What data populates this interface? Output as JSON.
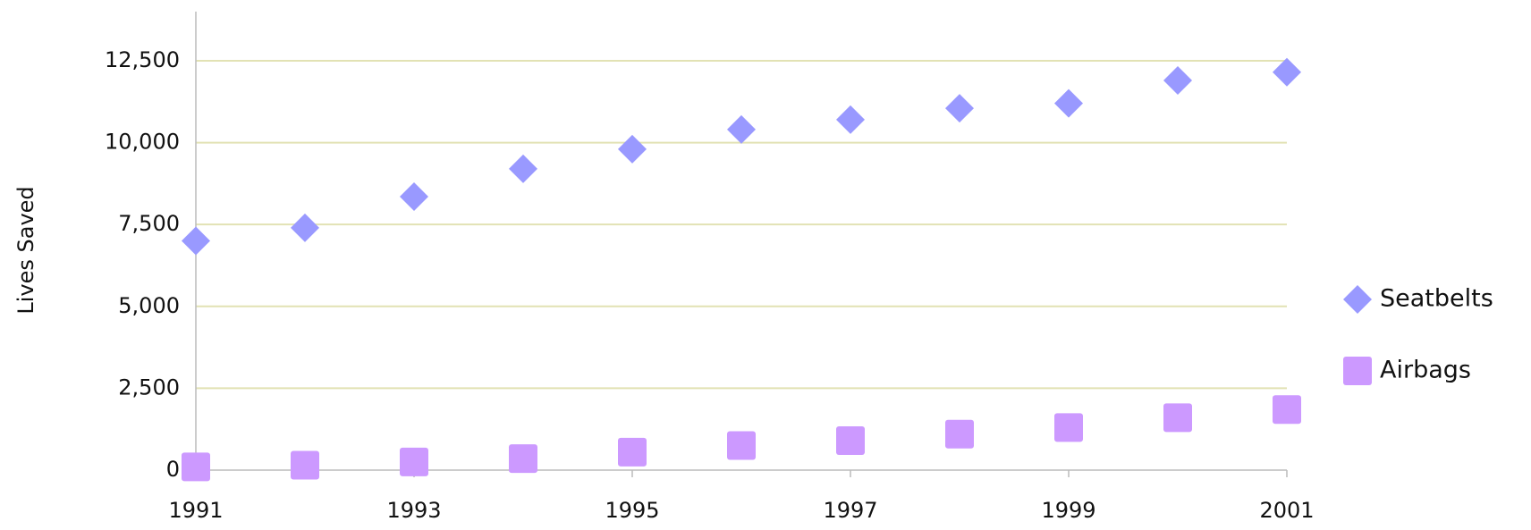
{
  "chart_data": {
    "type": "scatter",
    "y_label": "Lives Saved",
    "x": [
      1991,
      1992,
      1993,
      1994,
      1995,
      1996,
      1997,
      1998,
      1999,
      2000,
      2001
    ],
    "series": [
      {
        "name": "Seatbelts",
        "color": "#9999ff",
        "marker": "diamond",
        "values": [
          7000,
          7400,
          8350,
          9200,
          9800,
          10400,
          10700,
          11050,
          11200,
          11900,
          12150
        ]
      },
      {
        "name": "Airbags",
        "color": "#cc99ff",
        "marker": "square",
        "values": [
          100,
          150,
          250,
          350,
          550,
          750,
          900,
          1100,
          1300,
          1600,
          1850
        ]
      }
    ],
    "xlim": [
      1991,
      2001
    ],
    "xticks": [
      1991,
      1993,
      1995,
      1997,
      1999,
      2001
    ],
    "ylim": [
      0,
      14000
    ],
    "yticks": [
      0,
      {
        "value": 2500,
        "label": "2,500"
      },
      {
        "value": 5000,
        "label": "5,000"
      },
      {
        "value": 7500,
        "label": "7,500"
      },
      {
        "value": 10000,
        "label": "10,000"
      },
      {
        "value": 12500,
        "label": "12,500"
      }
    ],
    "grid": true,
    "legend": "right"
  }
}
